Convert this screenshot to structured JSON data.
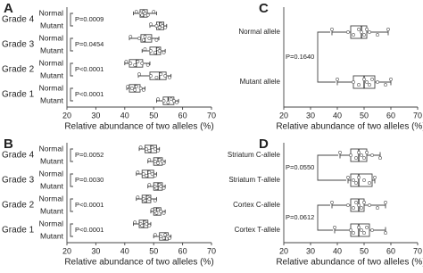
{
  "chart_data": [
    {
      "type": "box",
      "panel": "A",
      "xlabel": "Relative abundance of two alleles (%)",
      "xlim": [
        20,
        70
      ],
      "xticks": [
        20,
        30,
        40,
        50,
        60,
        70
      ],
      "groups": [
        "Grade 4",
        "Grade 3",
        "Grade 2",
        "Grade 1"
      ],
      "categories": [
        "Normal",
        "Mutant",
        "Normal",
        "Mutant",
        "Normal",
        "Mutant",
        "Normal",
        "Mutant"
      ],
      "boxes": [
        {
          "min": 43,
          "q1": 45.3,
          "median": 46.5,
          "q3": 47.8,
          "max": 51,
          "points": [
            44,
            45.5,
            46,
            46.5,
            47,
            48,
            50
          ]
        },
        {
          "min": 48.7,
          "q1": 51,
          "median": 52,
          "q3": 53.5,
          "max": 54.5,
          "points": [
            49,
            51,
            52,
            52.5,
            53,
            54
          ]
        },
        {
          "min": 41.6,
          "q1": 45.6,
          "median": 47,
          "q3": 49.3,
          "max": 51.8,
          "points": [
            42,
            45,
            46.5,
            47,
            48.5,
            51
          ]
        },
        {
          "min": 46,
          "q1": 48.7,
          "median": 51,
          "q3": 52.4,
          "max": 54,
          "points": [
            47,
            49,
            50.5,
            51.5,
            52,
            53.5
          ]
        },
        {
          "min": 40,
          "q1": 41.6,
          "median": 44,
          "q3": 46.2,
          "max": 48.7,
          "points": [
            40.5,
            42,
            43.5,
            44.5,
            46,
            48
          ]
        },
        {
          "min": 44.7,
          "q1": 48.7,
          "median": 52,
          "q3": 54.3,
          "max": 56,
          "points": [
            45,
            49,
            51,
            52.5,
            54,
            55.5
          ]
        },
        {
          "min": 40.7,
          "q1": 41.6,
          "median": 43.5,
          "q3": 45.3,
          "max": 47,
          "points": [
            41,
            42.5,
            43.5,
            44,
            45.5,
            46.5
          ]
        },
        {
          "min": 51,
          "q1": 53.3,
          "median": 55,
          "q3": 57,
          "max": 58.6,
          "points": [
            51.5,
            53.5,
            55,
            56,
            57,
            58
          ]
        }
      ],
      "annotations": [
        "P=0.0009",
        "P=0.0454",
        "P<0.0001",
        "P<0.0001"
      ]
    },
    {
      "type": "box",
      "panel": "B",
      "xlabel": "Relative abundance of two alleles (%)",
      "xlim": [
        20,
        70
      ],
      "xticks": [
        20,
        30,
        40,
        50,
        60,
        70
      ],
      "groups": [
        "Grade 4",
        "Grade 3",
        "Grade 2",
        "Grade 1"
      ],
      "categories": [
        "Normal",
        "Mutant",
        "Normal",
        "Mutant",
        "Normal",
        "Mutant",
        "Normal",
        "Mutant"
      ],
      "boxes": [
        {
          "min": 45,
          "q1": 47,
          "median": 49,
          "q3": 51,
          "max": 52,
          "points": [
            45.5,
            47.5,
            48.5,
            49.5,
            50.5,
            51.5
          ]
        },
        {
          "min": 48,
          "q1": 50,
          "median": 51.5,
          "q3": 53,
          "max": 54,
          "points": [
            48.5,
            50.5,
            51.5,
            52,
            53,
            53.5
          ]
        },
        {
          "min": 44,
          "q1": 46,
          "median": 48,
          "q3": 50,
          "max": 51,
          "points": [
            44.5,
            46.5,
            47.5,
            48.5,
            49.5,
            50.5
          ]
        },
        {
          "min": 48,
          "q1": 50,
          "median": 51.5,
          "q3": 53,
          "max": 54,
          "points": [
            48.5,
            50.5,
            51,
            52,
            52.5,
            53.5
          ]
        },
        {
          "min": 44,
          "q1": 46,
          "median": 47.5,
          "q3": 49,
          "max": 51,
          "points": [
            44.5,
            46.5,
            47,
            48,
            48.5,
            50.5
          ]
        },
        {
          "min": 49,
          "q1": 50,
          "median": 51,
          "q3": 52.5,
          "max": 54,
          "points": [
            49.5,
            50.5,
            51,
            51.5,
            52.5,
            53.5
          ]
        },
        {
          "min": 43,
          "q1": 45,
          "median": 46.5,
          "q3": 48,
          "max": 49,
          "points": [
            43.5,
            45.5,
            46,
            47,
            47.5,
            48.5
          ]
        },
        {
          "min": 50,
          "q1": 52,
          "median": 54,
          "q3": 55,
          "max": 56,
          "points": [
            50.5,
            52.5,
            53.5,
            54,
            55,
            55.5
          ]
        }
      ],
      "annotations": [
        "P=0.0052",
        "P=0.0030",
        "P<0.0001",
        "P<0.0001"
      ]
    },
    {
      "type": "box",
      "panel": "C",
      "xlabel": "Relative abundance of two alleles (%)",
      "xlim": [
        20,
        70
      ],
      "xticks": [
        20,
        30,
        40,
        50,
        60,
        70
      ],
      "categories": [
        "Normal allele",
        "Mutant allele"
      ],
      "boxes": [
        {
          "min": 38,
          "q1": 45,
          "median": 49,
          "q3": 51,
          "max": 59,
          "points": [
            38,
            44,
            46,
            48,
            49,
            50,
            51,
            52,
            55,
            59
          ]
        },
        {
          "min": 40,
          "q1": 46,
          "median": 50,
          "q3": 54,
          "max": 60,
          "points": [
            40,
            46,
            48,
            50,
            51,
            52,
            53,
            55,
            58,
            60
          ]
        }
      ],
      "annotations": [
        "P=0.1640"
      ]
    },
    {
      "type": "box",
      "panel": "D",
      "xlabel": "Relative abundance of two alleles (%)",
      "xlim": [
        20,
        70
      ],
      "xticks": [
        20,
        30,
        40,
        50,
        60,
        70
      ],
      "categories": [
        "Striatum C-allele",
        "Striatum T-allele",
        "Cortex C-allele",
        "Cortex T-allele"
      ],
      "boxes": [
        {
          "min": 41,
          "q1": 45,
          "median": 48,
          "q3": 51,
          "max": 56,
          "points": [
            41,
            45,
            47,
            48,
            49,
            50,
            51,
            53,
            56
          ]
        },
        {
          "min": 44,
          "q1": 45,
          "median": 48,
          "q3": 53,
          "max": 54,
          "points": [
            44,
            46,
            47,
            48,
            50,
            52,
            54
          ]
        },
        {
          "min": 38,
          "q1": 45,
          "median": 48,
          "q3": 50,
          "max": 58,
          "points": [
            38,
            44,
            46,
            47,
            48,
            49,
            50,
            52,
            55,
            58
          ]
        },
        {
          "min": 39,
          "q1": 45,
          "median": 48,
          "q3": 52,
          "max": 58,
          "points": [
            39,
            45,
            46,
            48,
            49,
            50,
            51,
            53,
            58
          ]
        }
      ],
      "annotations": [
        "P=0.0550",
        "P=0.0612"
      ]
    }
  ]
}
